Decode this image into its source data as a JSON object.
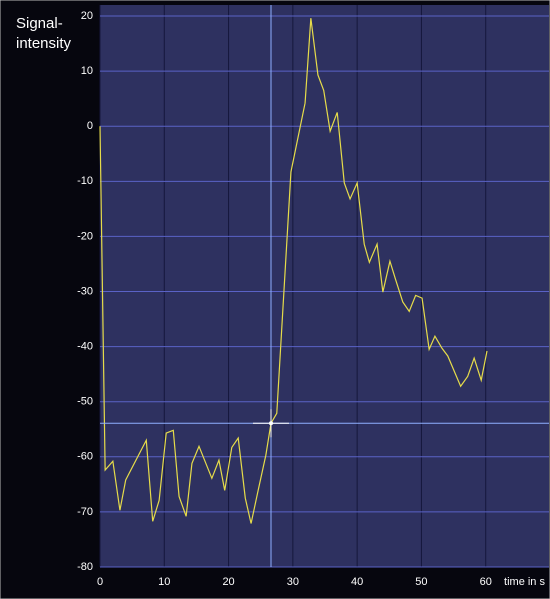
{
  "chart_data": {
    "type": "line",
    "ylabel": [
      "Signal-",
      "intensity"
    ],
    "xlabel": "time in s",
    "x": [
      0,
      0.8,
      2.0,
      3.1,
      4.0,
      7.2,
      8.2,
      9.2,
      10.3,
      11.4,
      12.3,
      13.4,
      14.3,
      15.4,
      17.4,
      18.5,
      19.4,
      20.5,
      21.5,
      22.6,
      23.5,
      24.6,
      25.8,
      26.6,
      27.5,
      29.7,
      31.9,
      32.8,
      33.9,
      34.8,
      35.8,
      36.9,
      38.0,
      38.9,
      40.0,
      41.1,
      41.9,
      43.1,
      44.0,
      45.1,
      46.0,
      47.1,
      48.1,
      49.1,
      50.1,
      51.2,
      52.1,
      53.2,
      54.1,
      56.1,
      57.2,
      58.2,
      59.3,
      60.2
    ],
    "series": [
      {
        "color": "#e6dc4a",
        "values": [
          0,
          -62.4,
          -60.8,
          -69.7,
          -64.2,
          -57.0,
          -71.7,
          -67.9,
          -55.7,
          -55.2,
          -67.2,
          -70.8,
          -61.2,
          -58.1,
          -63.9,
          -60.6,
          -66.1,
          -58.3,
          -56.6,
          -67.5,
          -72.1,
          -66.1,
          -59.7,
          -53.9,
          -52.1,
          -8.3,
          4.2,
          19.6,
          9.3,
          6.5,
          -0.9,
          2.5,
          -10.3,
          -13.2,
          -10.3,
          -21.4,
          -24.7,
          -21.4,
          -30.1,
          -24.5,
          -27.9,
          -31.9,
          -33.6,
          -30.7,
          -31.2,
          -40.5,
          -38.1,
          -40.3,
          -41.7,
          -47.2,
          -45.4,
          -42.1,
          -46.1,
          -40.8
        ]
      }
    ],
    "cursor": {
      "x": 26.6,
      "y": -53.9,
      "color": "#8fb0ff"
    },
    "xlim": [
      0,
      70
    ],
    "xticks": [
      0,
      10,
      20,
      30,
      40,
      50,
      60
    ],
    "ylim": [
      -80,
      22
    ],
    "yticks": [
      -80,
      -70,
      -60,
      -50,
      -40,
      -30,
      -20,
      -10,
      0,
      10,
      20
    ],
    "grid": true
  }
}
